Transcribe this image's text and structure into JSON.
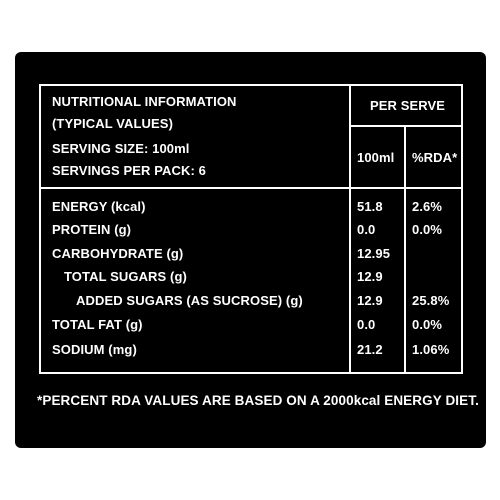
{
  "header": {
    "title_line1": "NUTRITIONAL INFORMATION",
    "title_line2": "(TYPICAL VALUES)",
    "serving_size": "SERVING SIZE: 100ml",
    "servings_per_pack": "SERVINGS PER PACK: 6",
    "per_serve": "PER SERVE",
    "col_amount": "100ml",
    "col_rda": "%RDA*"
  },
  "rows": [
    {
      "label": "ENERGY (kcal)",
      "amount": "51.8",
      "rda": "2.6%"
    },
    {
      "label": "PROTEIN (g)",
      "amount": "0.0",
      "rda": "0.0%"
    },
    {
      "label": "CARBOHYDRATE (g)",
      "amount": "12.95",
      "rda": ""
    },
    {
      "label": "TOTAL SUGARS (g)",
      "amount": "12.9",
      "rda": ""
    },
    {
      "label": "ADDED SUGARS (AS SUCROSE) (g)",
      "amount": "12.9",
      "rda": "25.8%"
    },
    {
      "label": "TOTAL FAT (g)",
      "amount": "0.0",
      "rda": "0.0%"
    },
    {
      "label": "SODIUM (mg)",
      "amount": "21.2",
      "rda": "1.06%"
    }
  ],
  "footnote": "*PERCENT RDA VALUES ARE BASED ON A 2000kcal ENERGY DIET.",
  "colors": {
    "panel": "#000000",
    "text": "#ffffff",
    "page": "#ffffff"
  }
}
